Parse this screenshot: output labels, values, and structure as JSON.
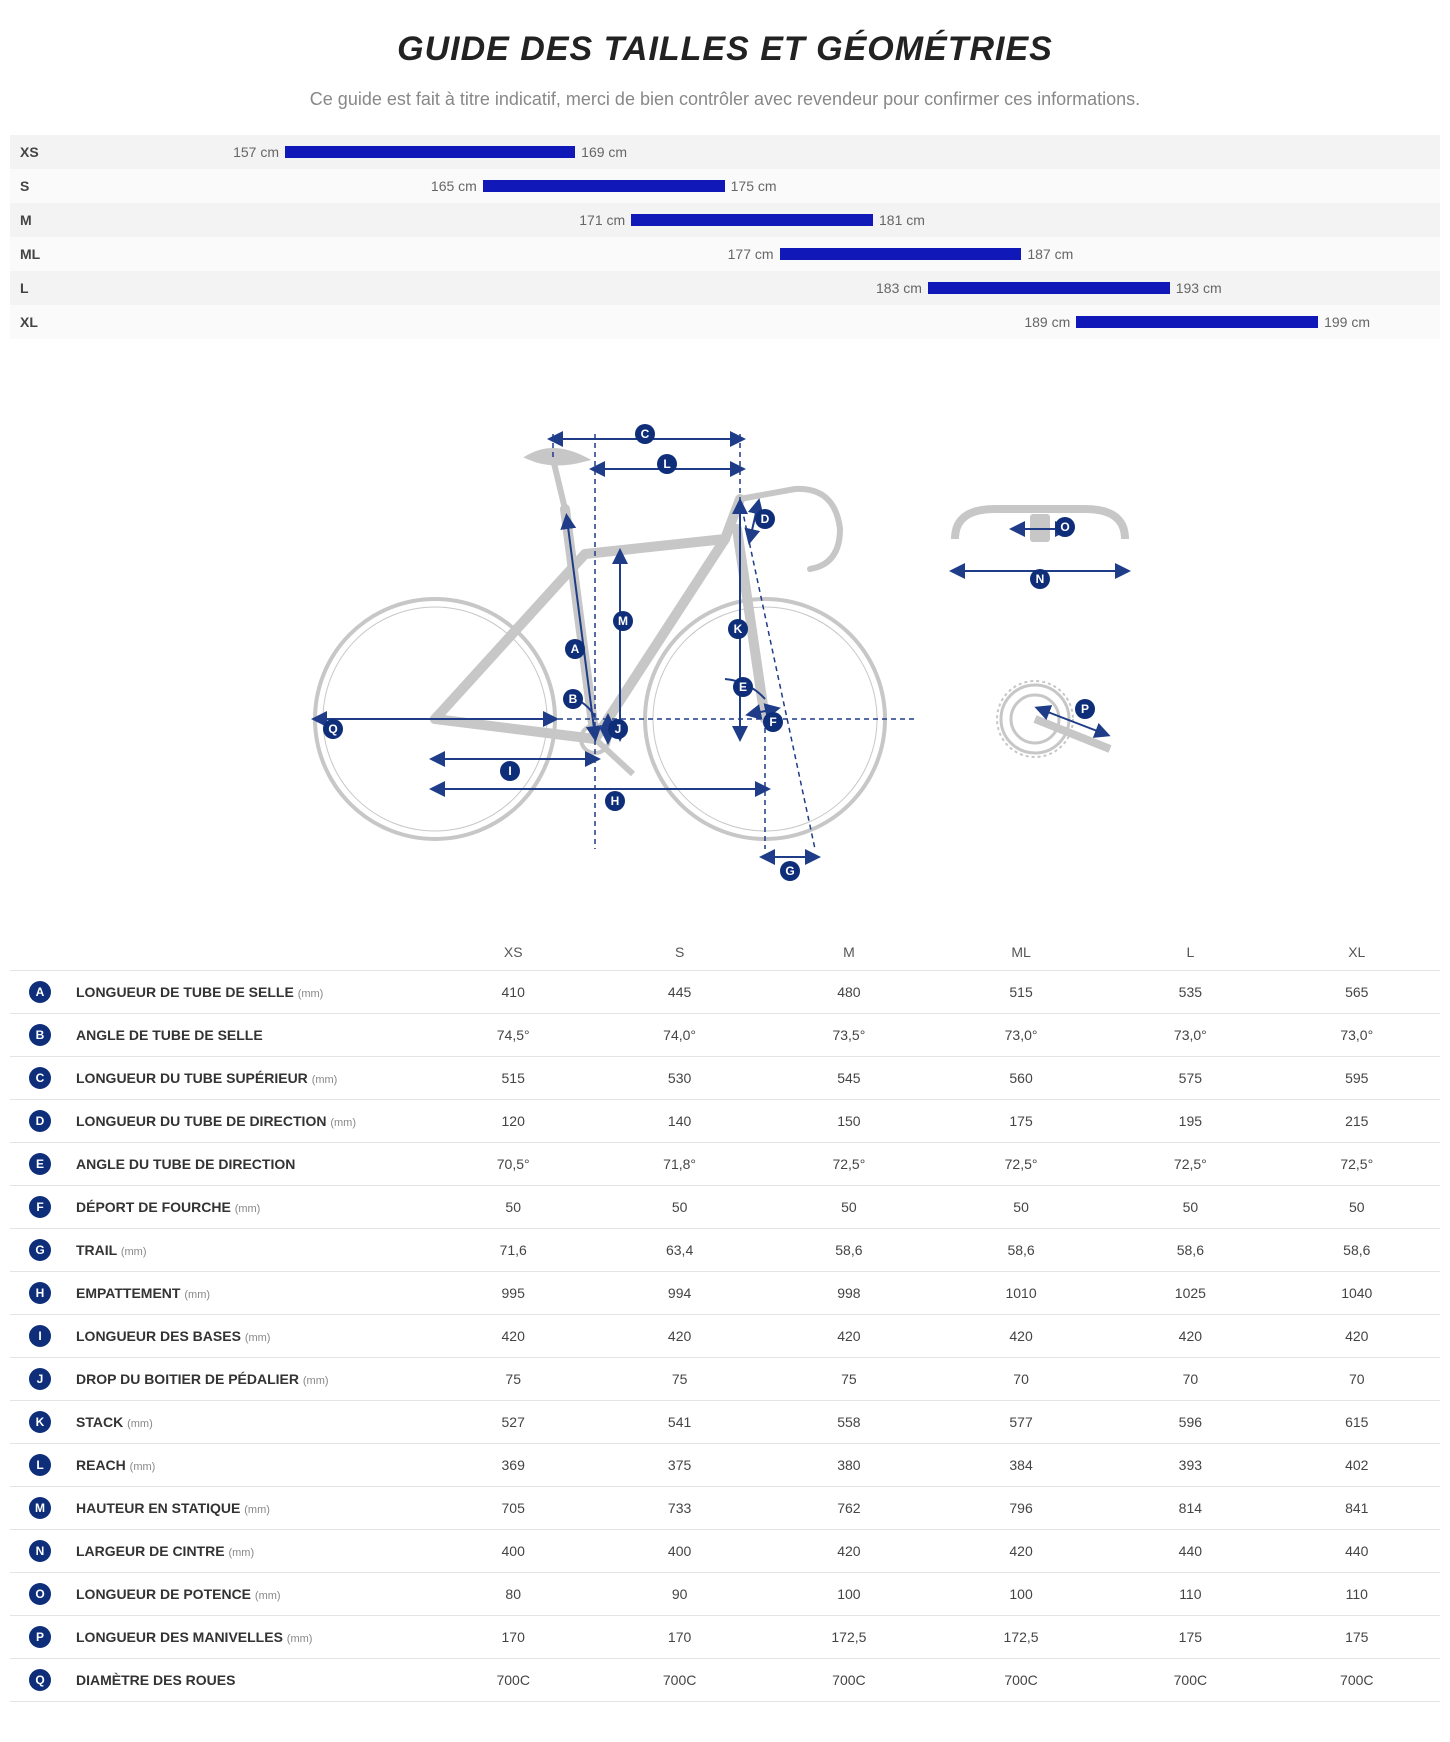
{
  "title": "GUIDE DES TAILLES ET GÉOMÉTRIES",
  "subtitle": "Ce guide est fait à titre indicatif, merci de bien contrôler avec revendeur pour confirmer ces informations.",
  "colors": {
    "badge_bg": "#0f2e7a",
    "bar_fill": "#1018b8",
    "row_alt_bg": "#f3f3f3",
    "row_bg": "#fafafa",
    "diagram_line": "#1f3c88",
    "diagram_frame": "#c7c7c7",
    "text_muted": "#888888"
  },
  "size_range": {
    "axis_min_cm": 150,
    "axis_max_cm": 205,
    "rows": [
      {
        "label": "XS",
        "min_cm": 157,
        "max_cm": 169,
        "min_txt": "157 cm",
        "max_txt": "169 cm"
      },
      {
        "label": "S",
        "min_cm": 165,
        "max_cm": 175,
        "min_txt": "165 cm",
        "max_txt": "175 cm"
      },
      {
        "label": "M",
        "min_cm": 171,
        "max_cm": 181,
        "min_txt": "171 cm",
        "max_txt": "181 cm"
      },
      {
        "label": "ML",
        "min_cm": 177,
        "max_cm": 187,
        "min_txt": "177 cm",
        "max_txt": "187 cm"
      },
      {
        "label": "L",
        "min_cm": 183,
        "max_cm": 193,
        "min_txt": "183 cm",
        "max_txt": "193 cm"
      },
      {
        "label": "XL",
        "min_cm": 189,
        "max_cm": 199,
        "min_txt": "189 cm",
        "max_txt": "199 cm"
      }
    ]
  },
  "geometry_table": {
    "id_col_header": "",
    "name_col_header": "",
    "size_headers": [
      "XS",
      "S",
      "M",
      "ML",
      "L",
      "XL"
    ],
    "rows": [
      {
        "id": "A",
        "name": "LONGUEUR DE TUBE DE SELLE",
        "unit": "(mm)",
        "values": [
          "410",
          "445",
          "480",
          "515",
          "535",
          "565"
        ]
      },
      {
        "id": "B",
        "name": "ANGLE DE TUBE DE SELLE",
        "unit": "",
        "values": [
          "74,5°",
          "74,0°",
          "73,5°",
          "73,0°",
          "73,0°",
          "73,0°"
        ]
      },
      {
        "id": "C",
        "name": "LONGUEUR DU TUBE SUPÉRIEUR",
        "unit": "(mm)",
        "values": [
          "515",
          "530",
          "545",
          "560",
          "575",
          "595"
        ]
      },
      {
        "id": "D",
        "name": "LONGUEUR DU TUBE DE DIRECTION",
        "unit": "(mm)",
        "values": [
          "120",
          "140",
          "150",
          "175",
          "195",
          "215"
        ]
      },
      {
        "id": "E",
        "name": "ANGLE DU TUBE DE DIRECTION",
        "unit": "",
        "values": [
          "70,5°",
          "71,8°",
          "72,5°",
          "72,5°",
          "72,5°",
          "72,5°"
        ]
      },
      {
        "id": "F",
        "name": "DÉPORT DE FOURCHE",
        "unit": "(mm)",
        "values": [
          "50",
          "50",
          "50",
          "50",
          "50",
          "50"
        ]
      },
      {
        "id": "G",
        "name": "TRAIL",
        "unit": "(mm)",
        "values": [
          "71,6",
          "63,4",
          "58,6",
          "58,6",
          "58,6",
          "58,6"
        ]
      },
      {
        "id": "H",
        "name": "EMPATTEMENT",
        "unit": "(mm)",
        "values": [
          "995",
          "994",
          "998",
          "1010",
          "1025",
          "1040"
        ]
      },
      {
        "id": "I",
        "name": "LONGUEUR DES BASES",
        "unit": "(mm)",
        "values": [
          "420",
          "420",
          "420",
          "420",
          "420",
          "420"
        ]
      },
      {
        "id": "J",
        "name": "DROP DU BOITIER DE PÉDALIER",
        "unit": "(mm)",
        "values": [
          "75",
          "75",
          "75",
          "70",
          "70",
          "70"
        ]
      },
      {
        "id": "K",
        "name": "STACK",
        "unit": "(mm)",
        "values": [
          "527",
          "541",
          "558",
          "577",
          "596",
          "615"
        ]
      },
      {
        "id": "L",
        "name": "REACH",
        "unit": "(mm)",
        "values": [
          "369",
          "375",
          "380",
          "384",
          "393",
          "402"
        ]
      },
      {
        "id": "M",
        "name": "HAUTEUR EN STATIQUE",
        "unit": "(mm)",
        "values": [
          "705",
          "733",
          "762",
          "796",
          "814",
          "841"
        ]
      },
      {
        "id": "N",
        "name": "LARGEUR DE CINTRE",
        "unit": "(mm)",
        "values": [
          "400",
          "400",
          "420",
          "420",
          "440",
          "440"
        ]
      },
      {
        "id": "O",
        "name": "LONGUEUR DE POTENCE",
        "unit": "(mm)",
        "values": [
          "80",
          "90",
          "100",
          "100",
          "110",
          "110"
        ]
      },
      {
        "id": "P",
        "name": "LONGUEUR DES MANIVELLES",
        "unit": "(mm)",
        "values": [
          "170",
          "170",
          "172,5",
          "172,5",
          "175",
          "175"
        ]
      },
      {
        "id": "Q",
        "name": "DIAMÈTRE DES ROUES",
        "unit": "",
        "values": [
          "700C",
          "700C",
          "700C",
          "700C",
          "700C",
          "700C"
        ]
      }
    ]
  },
  "diagram": {
    "type": "bike-geometry-schematic",
    "stroke_color": "#1f3c88",
    "frame_color": "#c7c7c7",
    "labels": [
      "A",
      "B",
      "C",
      "D",
      "E",
      "F",
      "G",
      "H",
      "I",
      "J",
      "K",
      "L",
      "M",
      "N",
      "O",
      "P",
      "Q"
    ]
  }
}
